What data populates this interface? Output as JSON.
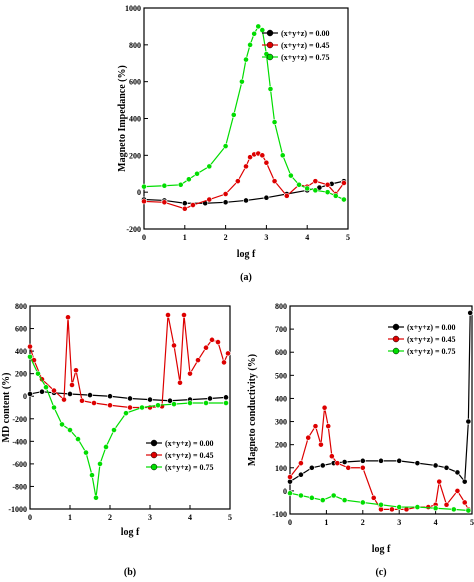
{
  "chart_data": [
    {
      "type": "line",
      "panel_label": "(a)",
      "xlabel": "log f",
      "ylabel": "Magneto Impedance (%)",
      "xlim": [
        0,
        5
      ],
      "ylim": [
        -200,
        1000
      ],
      "xticks": [
        0,
        1,
        2,
        3,
        4,
        5
      ],
      "yticks": [
        -200,
        0,
        200,
        400,
        600,
        800,
        1000
      ],
      "legend_position": "top-right",
      "series": [
        {
          "name": "(x+y+z) = 0.00",
          "color": "#000000",
          "x": [
            0,
            0.5,
            1,
            1.5,
            2,
            2.5,
            3,
            3.5,
            4,
            4.3,
            4.6,
            4.9
          ],
          "y": [
            -40,
            -45,
            -60,
            -60,
            -55,
            -45,
            -30,
            -10,
            10,
            25,
            45,
            60
          ]
        },
        {
          "name": "(x+y+z) = 0.45",
          "color": "#dd0000",
          "x": [
            0,
            0.5,
            1,
            1.2,
            1.6,
            2.0,
            2.3,
            2.5,
            2.6,
            2.7,
            2.8,
            2.9,
            3.0,
            3.2,
            3.5,
            3.8,
            4.0,
            4.2,
            4.5,
            4.7,
            4.9
          ],
          "y": [
            -50,
            -55,
            -90,
            -70,
            -40,
            -10,
            60,
            140,
            190,
            205,
            210,
            200,
            160,
            60,
            -20,
            40,
            30,
            60,
            40,
            -10,
            50
          ]
        },
        {
          "name": "(x+y+z) = 0.75",
          "color": "#00dd00",
          "x": [
            0,
            0.5,
            0.9,
            1.1,
            1.3,
            1.6,
            2.0,
            2.2,
            2.4,
            2.5,
            2.6,
            2.7,
            2.8,
            2.9,
            3.0,
            3.1,
            3.2,
            3.4,
            3.6,
            3.8,
            4.0,
            4.2,
            4.5,
            4.7,
            4.9
          ],
          "y": [
            30,
            35,
            40,
            70,
            100,
            140,
            250,
            420,
            600,
            720,
            800,
            860,
            900,
            880,
            750,
            560,
            380,
            200,
            90,
            40,
            20,
            10,
            0,
            -20,
            -40
          ]
        }
      ]
    },
    {
      "type": "line",
      "panel_label": "(b)",
      "xlabel": "log f",
      "ylabel": "MD content (%)",
      "xlim": [
        0,
        5
      ],
      "ylim": [
        -1000,
        800
      ],
      "xticks": [
        0,
        1,
        2,
        3,
        4,
        5
      ],
      "yticks": [
        -1000,
        -800,
        -600,
        -400,
        -200,
        0,
        200,
        400,
        600,
        800
      ],
      "legend_position": "bottom-right",
      "series": [
        {
          "name": "(x+y+z) = 0.00",
          "color": "#000000",
          "x": [
            0,
            0.3,
            0.6,
            1,
            1.5,
            2,
            2.5,
            3,
            3.5,
            4,
            4.5,
            4.9
          ],
          "y": [
            20,
            40,
            30,
            20,
            10,
            0,
            -20,
            -30,
            -40,
            -30,
            -20,
            -10
          ]
        },
        {
          "name": "(x+y+z) = 0.45",
          "color": "#dd0000",
          "x": [
            0,
            0.1,
            0.3,
            0.6,
            0.85,
            0.95,
            1.05,
            1.15,
            1.3,
            1.6,
            2.0,
            2.5,
            3.0,
            3.3,
            3.45,
            3.6,
            3.75,
            3.85,
            4.0,
            4.2,
            4.4,
            4.55,
            4.7,
            4.85,
            4.95
          ],
          "y": [
            440,
            320,
            150,
            50,
            -30,
            700,
            100,
            230,
            -40,
            -60,
            -80,
            -100,
            -100,
            -90,
            720,
            450,
            120,
            720,
            200,
            320,
            430,
            500,
            480,
            300,
            380
          ]
        },
        {
          "name": "(x+y+z) = 0.75",
          "color": "#00dd00",
          "x": [
            0,
            0.2,
            0.4,
            0.6,
            0.8,
            1.0,
            1.2,
            1.4,
            1.55,
            1.65,
            1.75,
            1.9,
            2.1,
            2.4,
            2.8,
            3.2,
            3.6,
            4.0,
            4.4,
            4.9
          ],
          "y": [
            350,
            200,
            80,
            -100,
            -250,
            -300,
            -380,
            -500,
            -700,
            -900,
            -600,
            -450,
            -300,
            -150,
            -100,
            -80,
            -70,
            -60,
            -60,
            -60
          ]
        }
      ]
    },
    {
      "type": "line",
      "panel_label": "(c)",
      "xlabel": "log f",
      "ylabel": "Magneto conductivity (%)",
      "xlim": [
        0,
        5
      ],
      "ylim": [
        -100,
        800
      ],
      "xticks": [
        0,
        1,
        2,
        3,
        4,
        5
      ],
      "yticks": [
        -100,
        0,
        100,
        200,
        300,
        400,
        500,
        600,
        700,
        800
      ],
      "legend_position": "top-right",
      "series": [
        {
          "name": "(x+y+z) = 0.00",
          "color": "#000000",
          "x": [
            0,
            0.3,
            0.6,
            0.9,
            1.2,
            1.5,
            2.0,
            2.5,
            3.0,
            3.5,
            4.0,
            4.3,
            4.6,
            4.8,
            4.9,
            4.95
          ],
          "y": [
            40,
            70,
            100,
            110,
            120,
            125,
            130,
            130,
            130,
            120,
            110,
            100,
            80,
            40,
            300,
            770
          ]
        },
        {
          "name": "(x+y+z) = 0.45",
          "color": "#dd0000",
          "x": [
            0,
            0.3,
            0.5,
            0.7,
            0.85,
            0.95,
            1.05,
            1.15,
            1.3,
            1.6,
            2.0,
            2.3,
            2.5,
            2.8,
            3.2,
            3.5,
            3.8,
            4.0,
            4.1,
            4.3,
            4.6,
            4.8,
            4.9
          ],
          "y": [
            60,
            120,
            230,
            280,
            200,
            360,
            280,
            150,
            120,
            100,
            100,
            -30,
            -80,
            -80,
            -80,
            -70,
            -70,
            -60,
            40,
            -60,
            0,
            -50,
            -80
          ]
        },
        {
          "name": "(x+y+z) = 0.75",
          "color": "#00dd00",
          "x": [
            0,
            0.3,
            0.6,
            0.9,
            1.2,
            1.5,
            2.0,
            2.5,
            3.0,
            3.5,
            4.0,
            4.5,
            4.9
          ],
          "y": [
            -10,
            -20,
            -30,
            -40,
            -20,
            -40,
            -50,
            -60,
            -70,
            -70,
            -75,
            -80,
            -85
          ]
        }
      ]
    }
  ]
}
